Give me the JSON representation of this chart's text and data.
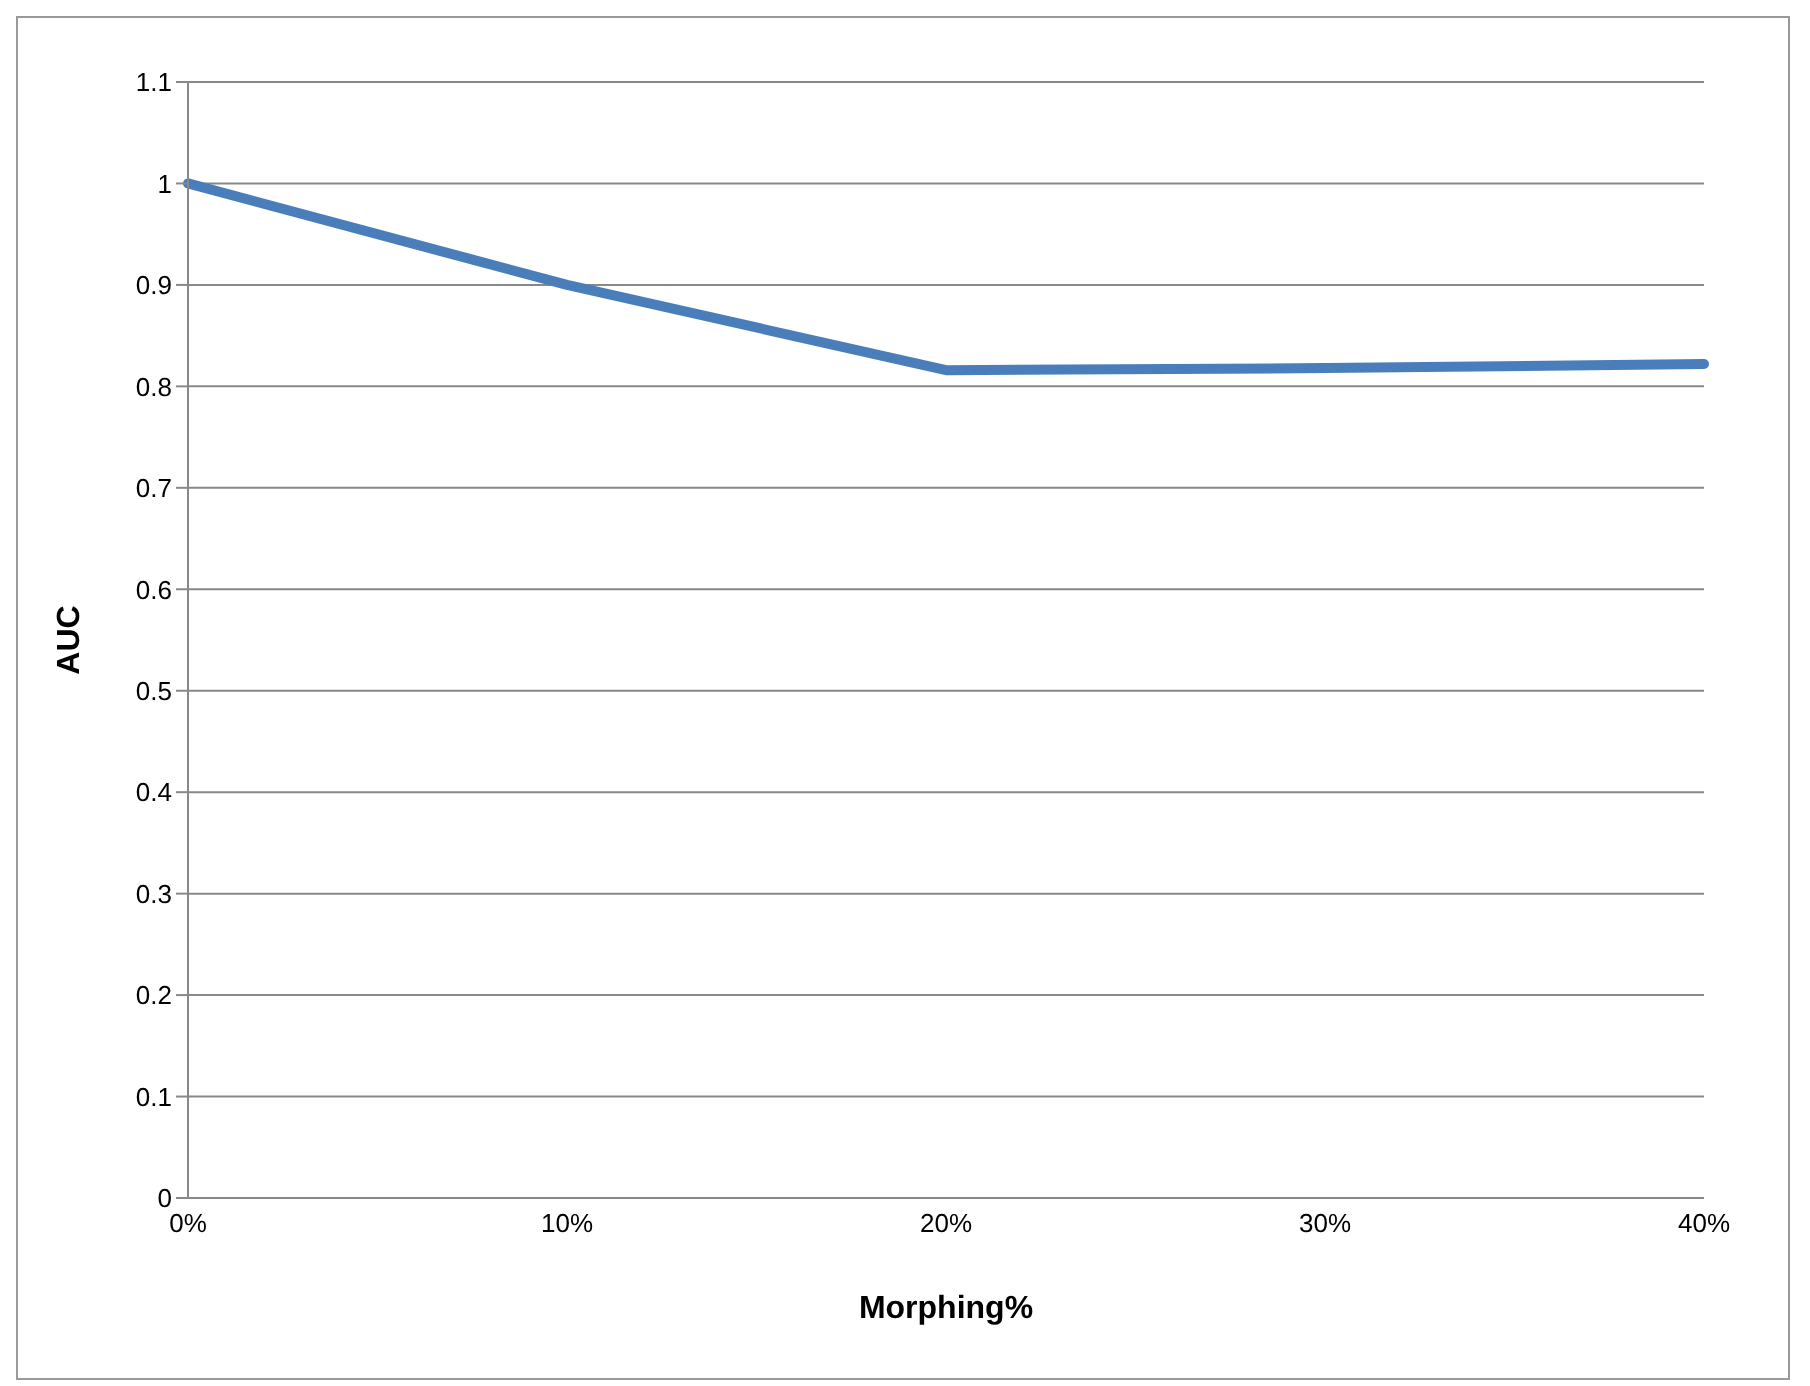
{
  "chart_data": {
    "type": "line",
    "xlabel": "Morphing%",
    "ylabel": "AUC",
    "categories": [
      "0%",
      "10%",
      "20%",
      "30%",
      "40%"
    ],
    "series": [
      {
        "color": "#4a7ebb",
        "values": [
          1.0,
          0.9,
          0.816,
          0.818,
          0.822
        ]
      }
    ],
    "ylim": [
      0,
      1.1
    ],
    "yticks": [
      0,
      0.1,
      0.2,
      0.3,
      0.4,
      0.5,
      0.6,
      0.7,
      0.8,
      0.9,
      1,
      1.1
    ],
    "grid": "y",
    "legend": false,
    "marker": "none",
    "line_style": "solid"
  }
}
